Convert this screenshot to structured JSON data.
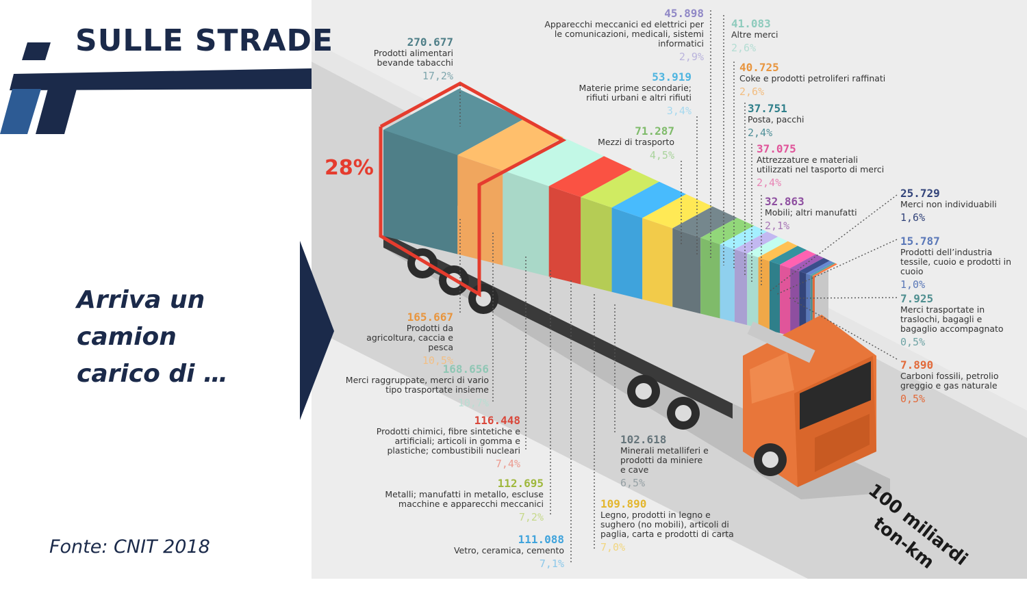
{
  "header": {
    "title": "SULLE STRADE"
  },
  "subtitle": [
    "Arriva un",
    "camion",
    "carico di …"
  ],
  "source": "Fonte: CNIT 2018",
  "highlight_pct": "28%",
  "scale_label": [
    "100 miliardi",
    "ton-km"
  ],
  "colors": {
    "navy": "#1b2a4a",
    "highlight": "#e53c2e",
    "truck": "#e8763a"
  },
  "categories": [
    {
      "value": "270.677",
      "label": "Prodotti alimentari bevande tabacchi",
      "pct": "17,2%",
      "color": "#4f7f88"
    },
    {
      "value": "165.667",
      "label": "Prodotti da agricoltura, caccia e pesca",
      "pct": "10,5%",
      "color": "#f0a65e"
    },
    {
      "value": "168.656",
      "label": "Merci raggruppate, merci di vario tipo trasportate insieme",
      "pct": "10,7%",
      "color": "#a9d8c8"
    },
    {
      "value": "116.448",
      "label": "Prodotti chimici, fibre sintetiche e artificiali; articoli in gomma e plastiche; combustibili nucleari",
      "pct": "7,4%",
      "color": "#d9473a"
    },
    {
      "value": "112.695",
      "label": "Metalli; manufatti in metallo, escluse macchine e apparecchi meccanici",
      "pct": "7,2%",
      "color": "#b5cc55"
    },
    {
      "value": "111.088",
      "label": "Vetro, ceramica, cemento",
      "pct": "7,1%",
      "color": "#3fa3dc"
    },
    {
      "value": "109.890",
      "label": "Legno, prodotti in legno e sughero (no mobili), articoli di paglia, carta e prodotti di carta",
      "pct": "7,0%",
      "color": "#f2cb4a"
    },
    {
      "value": "102.618",
      "label": "Minerali metalliferi e prodotti da miniere e cave",
      "pct": "6,5%",
      "color": "#66757b"
    },
    {
      "value": "71.287",
      "label": "Mezzi di trasporto",
      "pct": "4,5%",
      "color": "#7fbb6a"
    },
    {
      "value": "53.919",
      "label": "Materie prime secondarie; rifiuti urbani e altri rifiuti",
      "pct": "3,4%",
      "color": "#8fd0ee"
    },
    {
      "value": "45.898",
      "label": "Apparecchi meccanici ed elettrici per le comunicazioni, medicali, sistemi informatici",
      "pct": "2,9%",
      "color": "#a9a0d2"
    },
    {
      "value": "41.083",
      "label": "Altre merci",
      "pct": "2,6%",
      "color": "#a9dcd0"
    },
    {
      "value": "40.725",
      "label": "Coke e prodotti petroliferi raffinati",
      "pct": "2,6%",
      "color": "#f0a848"
    },
    {
      "value": "37.751",
      "label": "Posta, pacchi",
      "pct": "2,4%",
      "color": "#2f7f8a"
    },
    {
      "value": "37.075",
      "label": "Attrezzature e materiali utilizzati nel tasporto di merci",
      "pct": "2,4%",
      "color": "#e0559a"
    },
    {
      "value": "32.863",
      "label": "Mobili; altri manufatti",
      "pct": "2,1%",
      "color": "#8e4fa0"
    },
    {
      "value": "25.729",
      "label": "Merci non individuabili",
      "pct": "1,6%",
      "color": "#33447a"
    },
    {
      "value": "15.787",
      "label": "Prodotti dell’industria tessile, cuoio e prodotti in cuoio",
      "pct": "1,0%",
      "color": "#5a78b8"
    },
    {
      "value": "7.925",
      "label": "Merci trasportate in traslochi, bagagli e bagaglio accompagnato",
      "pct": "0,5%",
      "color": "#4f8f90"
    },
    {
      "value": "7.890",
      "label": "Carboni fossili, petrolio greggio e gas naturale",
      "pct": "0,5%",
      "color": "#e26a3a"
    }
  ]
}
